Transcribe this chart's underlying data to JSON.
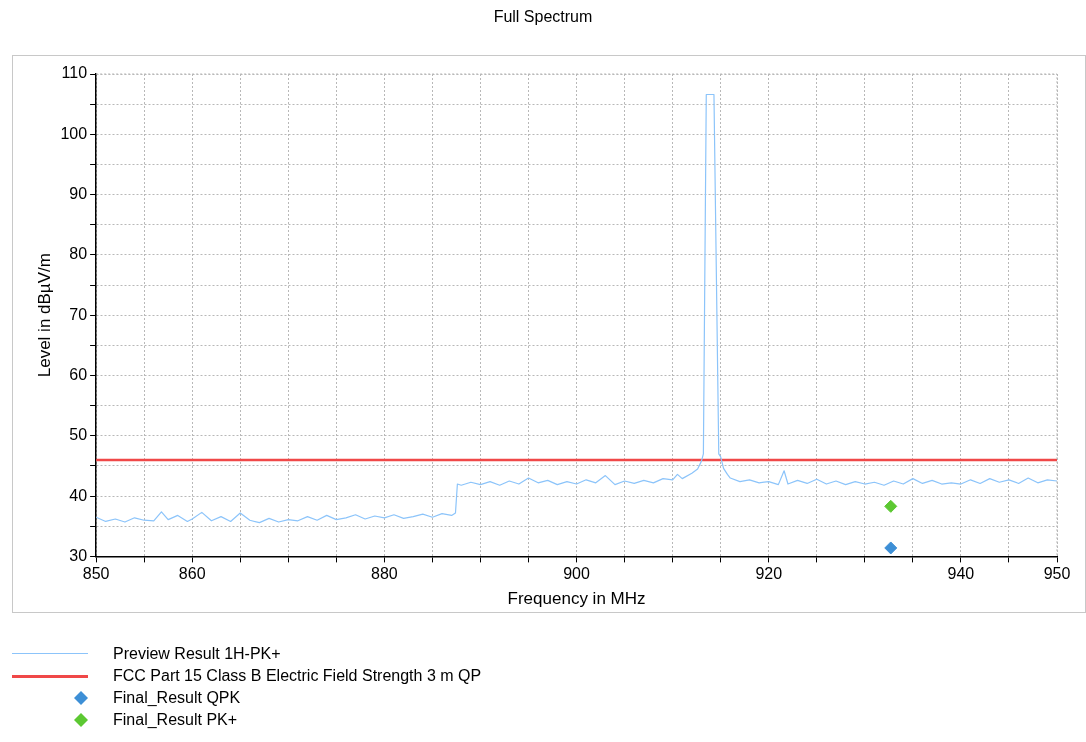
{
  "chart_data": {
    "type": "line",
    "title": "Full Spectrum",
    "xlabel": "Frequency in MHz",
    "ylabel": "Level in dBµV/m",
    "xlim": [
      850,
      950
    ],
    "ylim": [
      30,
      110
    ],
    "xticks": [
      850,
      {
        "value": 855,
        "label": null
      },
      860,
      {
        "value": 865,
        "label": null
      },
      {
        "value": 870,
        "label": null
      },
      {
        "value": 875,
        "label": null
      },
      880,
      {
        "value": 885,
        "label": null
      },
      {
        "value": 890,
        "label": null
      },
      {
        "value": 895,
        "label": null
      },
      900,
      {
        "value": 905,
        "label": null
      },
      {
        "value": 910,
        "label": null
      },
      {
        "value": 915,
        "label": null
      },
      920,
      {
        "value": 925,
        "label": null
      },
      {
        "value": 930,
        "label": null
      },
      {
        "value": 935,
        "label": null
      },
      940,
      {
        "value": 945,
        "label": null
      },
      950
    ],
    "yticks": [
      30,
      {
        "value": 35,
        "label": null
      },
      40,
      {
        "value": 45,
        "label": null
      },
      50,
      {
        "value": 55,
        "label": null
      },
      60,
      {
        "value": 65,
        "label": null
      },
      70,
      {
        "value": 75,
        "label": null
      },
      80,
      {
        "value": 85,
        "label": null
      },
      90,
      {
        "value": 95,
        "label": null
      },
      100,
      {
        "value": 105,
        "label": null
      },
      110
    ],
    "grid": true,
    "legend": "bottom",
    "marker": "none",
    "series": [
      {
        "name": "Preview Result 1H-PK+",
        "color": "#8cc4fa",
        "x": [
          850,
          851,
          852,
          853,
          854,
          855,
          856,
          856.8,
          857.5,
          858.5,
          859.5,
          860,
          861,
          862,
          863,
          864,
          865,
          866,
          867,
          868,
          869,
          870,
          871,
          872,
          873,
          874,
          875,
          876,
          877,
          878,
          879,
          880,
          881,
          882,
          883,
          884,
          885,
          886,
          887,
          887.4,
          887.6,
          888,
          889,
          890,
          891,
          892,
          893,
          894,
          895,
          896,
          897,
          898,
          899,
          900,
          901,
          902,
          903,
          904,
          905,
          906,
          907,
          908,
          909,
          910,
          910.5,
          911,
          912,
          912.6,
          913,
          913.2,
          913.5,
          914.3,
          914.8,
          915,
          915.3,
          915.7,
          916,
          917,
          918,
          919,
          920,
          921,
          921.6,
          922,
          923,
          924,
          925,
          926,
          927,
          928,
          929,
          930,
          931,
          932,
          933,
          934,
          935,
          936,
          937,
          938,
          939,
          940,
          941,
          942,
          943,
          944,
          945,
          946,
          947,
          948,
          949,
          950
        ],
        "values": [
          36.5,
          35.8,
          36.2,
          35.7,
          36.4,
          36.0,
          35.9,
          37.4,
          36.1,
          36.8,
          35.8,
          36.2,
          37.3,
          35.9,
          36.6,
          35.8,
          37.2,
          36.0,
          35.6,
          36.3,
          35.7,
          36.1,
          35.9,
          36.6,
          36.0,
          36.8,
          36.1,
          36.4,
          36.9,
          36.2,
          36.7,
          36.4,
          36.9,
          36.3,
          36.6,
          37.0,
          36.5,
          37.1,
          36.8,
          37.2,
          42.0,
          41.8,
          42.3,
          41.9,
          42.4,
          41.8,
          42.5,
          42.0,
          43.0,
          42.2,
          42.6,
          41.9,
          42.4,
          42.0,
          42.7,
          42.2,
          43.4,
          41.9,
          42.5,
          42.1,
          42.6,
          42.2,
          42.9,
          42.7,
          43.6,
          42.9,
          43.8,
          44.5,
          45.8,
          47,
          106.6,
          106.6,
          47,
          46.5,
          44.6,
          43.6,
          43.0,
          42.4,
          42.7,
          42.2,
          42.4,
          41.9,
          44.2,
          42.0,
          42.6,
          42.1,
          42.8,
          42.0,
          42.5,
          41.9,
          42.4,
          42.0,
          42.3,
          41.8,
          42.5,
          42.0,
          42.9,
          42.1,
          42.6,
          42.0,
          42.2,
          42.0,
          42.7,
          42.1,
          42.9,
          42.3,
          42.7,
          42.1,
          43.0,
          42.2,
          42.7,
          42.5
        ]
      },
      {
        "name": "FCC Part 15 Class B Electric Field Strength 3 m QP",
        "color": "#f04848",
        "x": [
          850,
          950
        ],
        "values": [
          46,
          46
        ]
      },
      {
        "name": "Final_Result QPK",
        "color": "#3d8fd6",
        "type": "scatter",
        "marker": "diamond",
        "x": [
          932.7
        ],
        "values": [
          31.4
        ]
      },
      {
        "name": "Final_Result PK+",
        "color": "#5cc832",
        "type": "scatter",
        "marker": "diamond",
        "x": [
          932.7
        ],
        "values": [
          38.3
        ]
      }
    ]
  }
}
